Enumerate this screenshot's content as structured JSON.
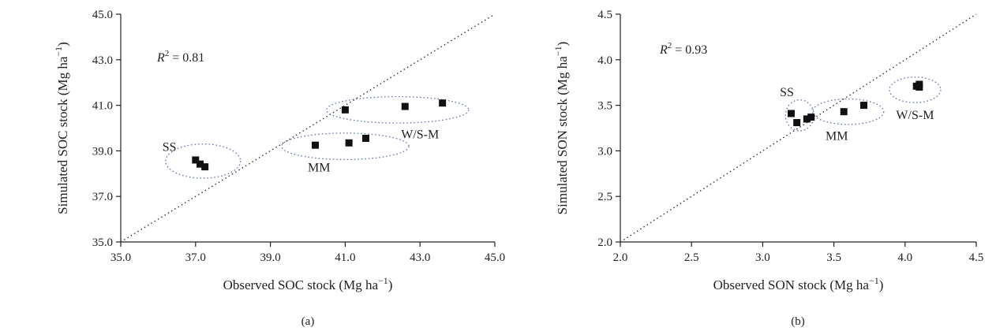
{
  "chart_data": [
    {
      "type": "scatter",
      "panel_label": "(a)",
      "xlabel": "Observed SOC stock (Mg ha",
      "ylabel": "Simulated SOC stock (Mg ha",
      "unit_superscript": "−1",
      "xlim": [
        35.0,
        45.0
      ],
      "ylim": [
        35.0,
        45.0
      ],
      "xticks": [
        "35.0",
        "37.0",
        "39.0",
        "41.0",
        "43.0",
        "45.0"
      ],
      "yticks": [
        "35.0",
        "37.0",
        "39.0",
        "41.0",
        "43.0",
        "45.0"
      ],
      "r2_prefix": "R",
      "r2_sup": "2",
      "r2_value": " = 0.81",
      "one_to_one_line": true,
      "points": [
        {
          "x": 37.0,
          "y": 38.6
        },
        {
          "x": 37.12,
          "y": 38.42
        },
        {
          "x": 37.25,
          "y": 38.3
        },
        {
          "x": 40.2,
          "y": 39.25
        },
        {
          "x": 41.1,
          "y": 39.35
        },
        {
          "x": 41.55,
          "y": 39.55
        },
        {
          "x": 41.0,
          "y": 40.8
        },
        {
          "x": 42.6,
          "y": 40.95
        },
        {
          "x": 43.6,
          "y": 41.1
        }
      ],
      "groups": [
        {
          "label": "SS",
          "cx": 37.2,
          "cy": 38.55,
          "rx": 1.0,
          "ry": 0.75,
          "lx": 36.3,
          "ly": 39.0
        },
        {
          "label": "MM",
          "cx": 41.0,
          "cy": 39.2,
          "rx": 1.7,
          "ry": 0.58,
          "lx": 40.3,
          "ly": 38.1
        },
        {
          "label": "W/S-M",
          "cx": 42.4,
          "cy": 40.8,
          "rx": 1.9,
          "ry": 0.58,
          "lx": 43.0,
          "ly": 39.55
        }
      ]
    },
    {
      "type": "scatter",
      "panel_label": "(b)",
      "xlabel": "Observed SON stock (Mg ha",
      "ylabel": "Simulated SON stock (Mg ha",
      "unit_superscript": "−1",
      "xlim": [
        2.0,
        4.5
      ],
      "ylim": [
        2.0,
        4.5
      ],
      "xticks": [
        "2.0",
        "2.5",
        "3.0",
        "3.5",
        "4.0",
        "4.5"
      ],
      "yticks": [
        "2.0",
        "2.5",
        "3.0",
        "3.5",
        "4.0",
        "4.5"
      ],
      "r2_prefix": "R",
      "r2_sup": "2",
      "r2_value": " = 0.93",
      "one_to_one_line": true,
      "points": [
        {
          "x": 3.2,
          "y": 3.41
        },
        {
          "x": 3.24,
          "y": 3.31
        },
        {
          "x": 3.31,
          "y": 3.35
        },
        {
          "x": 3.34,
          "y": 3.37
        },
        {
          "x": 3.57,
          "y": 3.43
        },
        {
          "x": 3.71,
          "y": 3.5
        },
        {
          "x": 4.08,
          "y": 3.71
        },
        {
          "x": 4.1,
          "y": 3.7
        },
        {
          "x": 4.1,
          "y": 3.73
        }
      ],
      "groups": [
        {
          "label": "SS",
          "cx": 3.26,
          "cy": 3.39,
          "rx": 0.1,
          "ry": 0.17,
          "lx": 3.17,
          "ly": 3.6
        },
        {
          "label": "MM",
          "cx": 3.6,
          "cy": 3.43,
          "rx": 0.25,
          "ry": 0.14,
          "lx": 3.52,
          "ly": 3.12
        },
        {
          "label": "W/S-M",
          "cx": 4.07,
          "cy": 3.67,
          "rx": 0.18,
          "ry": 0.14,
          "lx": 4.07,
          "ly": 3.35
        }
      ]
    }
  ]
}
